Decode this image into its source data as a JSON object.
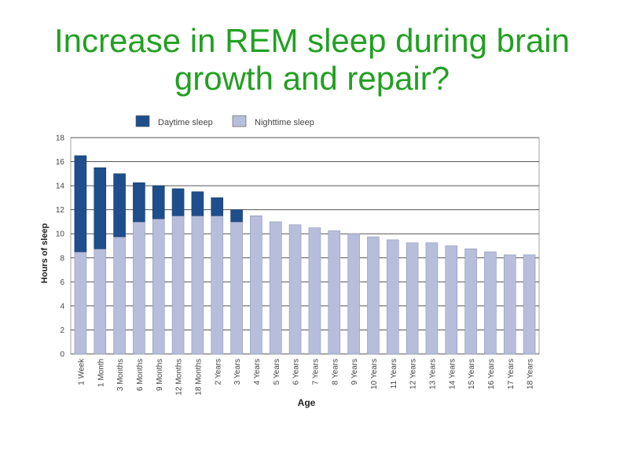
{
  "slide": {
    "title_line1": "Increase in REM sleep during brain",
    "title_line2": "growth and repair?"
  },
  "chart_data": {
    "type": "bar",
    "stacked": true,
    "title": "Increase in REM sleep during brain growth and repair?",
    "xlabel": "Age",
    "ylabel": "Hours of sleep",
    "ylim": [
      0,
      18
    ],
    "yticks": [
      0,
      2,
      4,
      6,
      8,
      10,
      12,
      14,
      16,
      18
    ],
    "grid": true,
    "legend_position": "top",
    "categories": [
      "1 Week",
      "1 Month",
      "3 Months",
      "6 Months",
      "9 Months",
      "12 Months",
      "18 Months",
      "2 Years",
      "3 Years",
      "4 Years",
      "5 Years",
      "6 Years",
      "7 Years",
      "8 Years",
      "9 Years",
      "10 Years",
      "11 Years",
      "12 Years",
      "13 Years",
      "14 Years",
      "15 Years",
      "16 Years",
      "17 Years",
      "18 Years"
    ],
    "series": [
      {
        "name": "Nighttime sleep",
        "color": "#b7bedb",
        "values": [
          8.5,
          8.75,
          9.75,
          11,
          11.25,
          11.5,
          11.5,
          11.5,
          11,
          11.5,
          11,
          10.75,
          10.5,
          10.25,
          10,
          9.75,
          9.5,
          9.25,
          9.25,
          9,
          8.75,
          8.5,
          8.25,
          8.25
        ]
      },
      {
        "name": "Daytime sleep",
        "color": "#1f4e8c",
        "values": [
          8,
          6.75,
          5.25,
          3.25,
          2.75,
          2.25,
          2,
          1.5,
          1,
          0,
          0,
          0,
          0,
          0,
          0,
          0,
          0,
          0,
          0,
          0,
          0,
          0,
          0,
          0
        ]
      }
    ]
  }
}
